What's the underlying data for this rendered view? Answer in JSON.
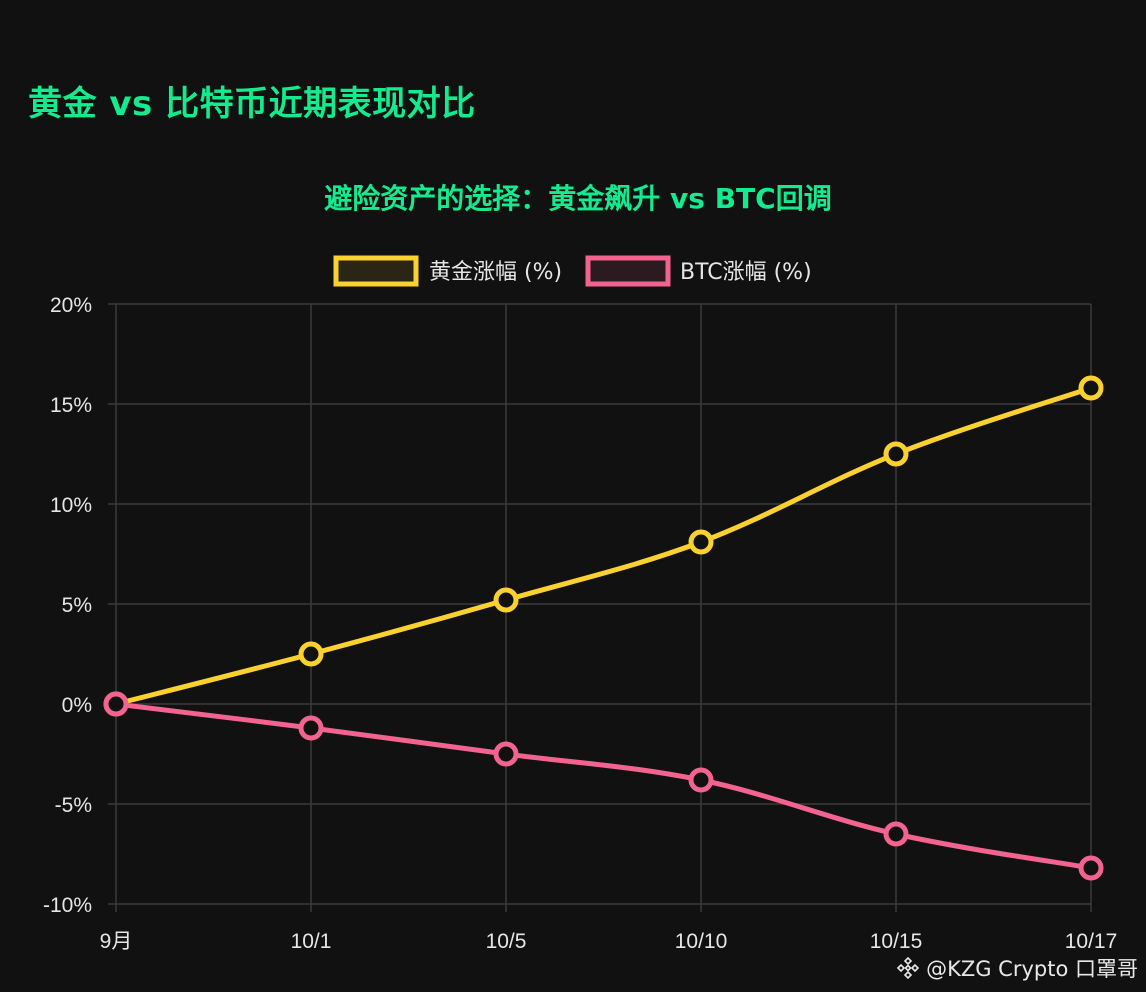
{
  "page": {
    "title": "黄金 vs 比特币近期表现对比",
    "watermark": "@KZG Crypto 口罩哥"
  },
  "colors": {
    "background": "#111111",
    "title": "#14ea8e",
    "grid": "#3a3a3a",
    "text": "#e6e6e6",
    "gold": "#fbd12f",
    "btc": "#f2638f"
  },
  "chart_data": {
    "type": "line",
    "title": "避险资产的选择：黄金飙升 vs BTC回调",
    "categories": [
      "9月",
      "10/1",
      "10/5",
      "10/10",
      "10/15",
      "10/17"
    ],
    "ylim": [
      -10,
      20
    ],
    "yticks": [
      20,
      15,
      10,
      5,
      0,
      -5,
      -10
    ],
    "ytick_labels": [
      "20%",
      "15%",
      "10%",
      "5%",
      "0%",
      "-5%",
      "-10%"
    ],
    "grid": true,
    "legend_position": "top-center",
    "series": [
      {
        "name": "黄金涨幅 (%)",
        "color": "#fbd12f",
        "values": [
          0,
          2.5,
          5.2,
          8.1,
          12.5,
          15.8
        ]
      },
      {
        "name": "BTC涨幅 (%)",
        "color": "#f2638f",
        "values": [
          0,
          -1.2,
          -2.5,
          -3.8,
          -6.5,
          -8.2
        ]
      }
    ]
  }
}
